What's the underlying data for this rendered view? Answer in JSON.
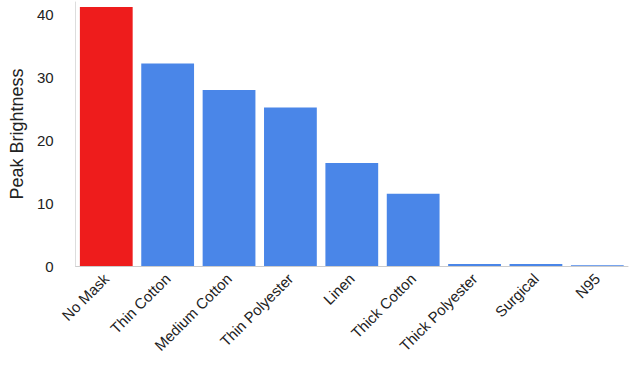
{
  "chart_data": {
    "type": "bar",
    "y_label": "Peak Brightness",
    "categories": [
      "No Mask",
      "Thin Cotton",
      "Medium Cotton",
      "Thin Polyester",
      "Linen",
      "Thick Cotton",
      "Thick Polyester",
      "Surgical",
      "N95"
    ],
    "values": [
      41.2,
      32.2,
      28,
      25.2,
      16.4,
      11.5,
      0.3,
      0.3,
      0.1
    ],
    "colors": [
      "#ee1c1c",
      "#4a86e8",
      "#4a86e8",
      "#4a86e8",
      "#4a86e8",
      "#4a86e8",
      "#4a86e8",
      "#4a86e8",
      "#4a86e8"
    ],
    "ylim": [
      0,
      42
    ],
    "yticks": [
      0,
      10,
      20,
      30,
      40
    ],
    "grid": false
  }
}
